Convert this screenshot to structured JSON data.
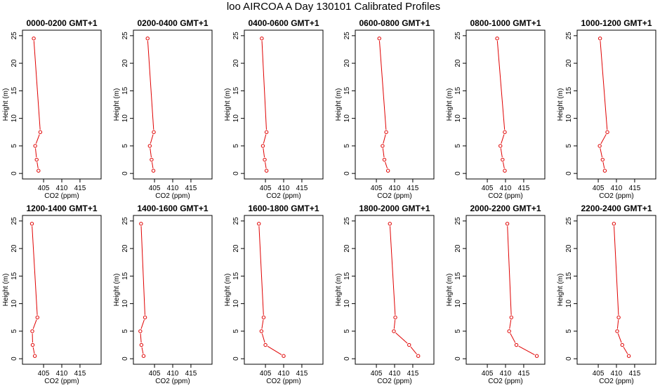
{
  "title": "loo AIRCOA A  Day 130101  Calibrated Profiles",
  "colors": {
    "profile": "#e00000",
    "axis": "#000000"
  },
  "chart_data": {
    "type": "line",
    "xlabel": "CO2 (ppm)",
    "ylabel": "Height (m)",
    "xlim": [
      400,
      420
    ],
    "ylim": [
      0,
      25
    ],
    "xticks": [
      "405",
      "410",
      "415"
    ],
    "yticks": [
      "0",
      "5",
      "10",
      "15",
      "20",
      "25"
    ],
    "heights": [
      0.5,
      2.5,
      5,
      7.5,
      24.5
    ],
    "grid": false,
    "panels": [
      {
        "title": "0000-0200 GMT+1",
        "values": [
          403.6,
          403.1,
          402.7,
          404.1,
          402.3
        ]
      },
      {
        "title": "0200-0400 GMT+1",
        "values": [
          404.7,
          404.2,
          403.7,
          404.8,
          403.1
        ]
      },
      {
        "title": "0400-0600 GMT+1",
        "values": [
          405.3,
          404.8,
          404.3,
          405.3,
          404.0
        ]
      },
      {
        "title": "0600-0800 GMT+1",
        "values": [
          408.2,
          407.2,
          406.7,
          407.7,
          405.8
        ]
      },
      {
        "title": "0800-1000 GMT+1",
        "values": [
          409.8,
          409.2,
          408.6,
          409.8,
          407.7
        ]
      },
      {
        "title": "1000-1200 GMT+1",
        "values": [
          406.8,
          406.2,
          405.4,
          407.5,
          405.5
        ]
      },
      {
        "title": "1200-1400 GMT+1",
        "values": [
          402.6,
          402.0,
          401.9,
          403.3,
          401.8
        ]
      },
      {
        "title": "1400-1600 GMT+1",
        "values": [
          402.0,
          401.4,
          401.1,
          402.4,
          401.3
        ]
      },
      {
        "title": "1600-1800 GMT+1",
        "values": [
          410.0,
          405.0,
          403.9,
          404.5,
          403.2
        ]
      },
      {
        "title": "1800-2000 GMT+1",
        "values": [
          416.5,
          414.0,
          409.8,
          410.2,
          408.7
        ]
      },
      {
        "title": "2000-2200 GMT+1",
        "values": [
          418.6,
          413.0,
          411.0,
          411.6,
          410.5
        ]
      },
      {
        "title": "2200-2400 GMT+1",
        "values": [
          413.4,
          411.6,
          410.2,
          410.6,
          409.3
        ]
      }
    ]
  }
}
